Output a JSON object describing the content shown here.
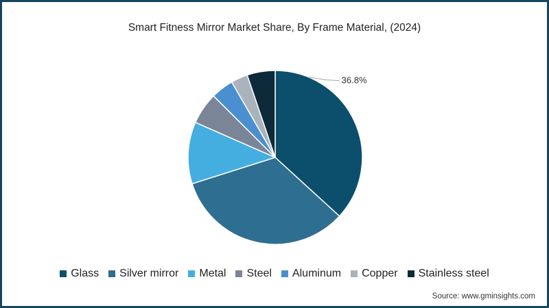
{
  "chart_data": {
    "type": "pie",
    "title": "Smart Fitness Mirror Market Share, By Frame Material, (2024)",
    "categories": [
      "Glass",
      "Silver mirror",
      "Metal",
      "Steel",
      "Aluminum",
      "Copper",
      "Stainless steel"
    ],
    "values": [
      36.8,
      33.3,
      11.5,
      5.9,
      4.2,
      3.1,
      5.2
    ],
    "colors": [
      "#0b4f6c",
      "#2e6e91",
      "#45aee0",
      "#7a8598",
      "#4a90d0",
      "#aab2bb",
      "#0d2a3a"
    ],
    "data_labels": [
      {
        "category": "Glass",
        "text": "36.8%"
      }
    ],
    "legend_position": "bottom",
    "start_angle_deg": 0,
    "direction": "clockwise"
  },
  "source": "Source: www.gminsights.com"
}
